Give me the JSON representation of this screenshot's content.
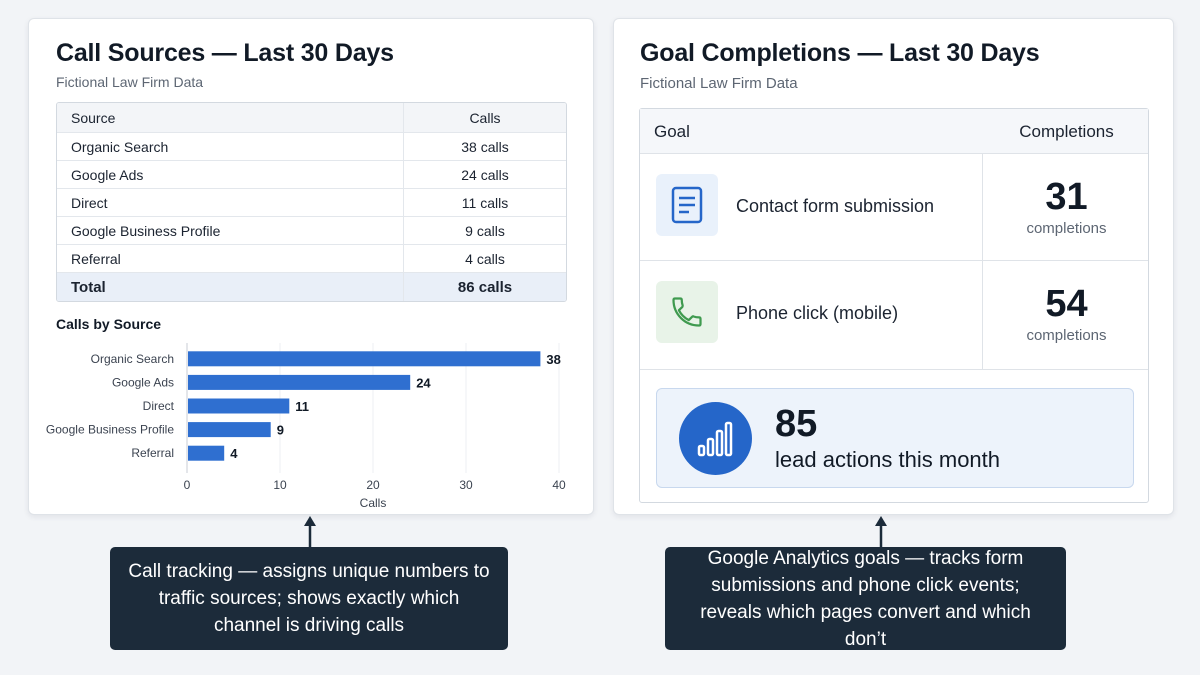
{
  "left_panel": {
    "title": "Call Sources — Last 30 Days",
    "subtitle": "Fictional Law Firm Data",
    "table": {
      "headers": [
        "Source",
        "Calls"
      ],
      "rows": [
        {
          "source": "Organic Search",
          "calls": "38 calls"
        },
        {
          "source": "Google Ads",
          "calls": "24 calls"
        },
        {
          "source": "Direct",
          "calls": "11 calls"
        },
        {
          "source": "Google Business Profile",
          "calls": "9 calls"
        },
        {
          "source": "Referral",
          "calls": "4 calls"
        }
      ],
      "total": {
        "label": "Total",
        "value": "86 calls"
      }
    }
  },
  "chart_data": {
    "type": "bar",
    "orientation": "horizontal",
    "title": "Calls by Source",
    "categories": [
      "Organic Search",
      "Google Ads",
      "Direct",
      "Google Business Profile",
      "Referral"
    ],
    "values": [
      38,
      24,
      11,
      9,
      4
    ],
    "xlabel": "Calls",
    "ylabel": "",
    "xlim": [
      0,
      40
    ],
    "xticks": [
      0,
      10,
      20,
      30,
      40
    ],
    "grid": true,
    "bar_color": "#2f6fd0"
  },
  "right_panel": {
    "title": "Goal Completions — Last 30 Days",
    "subtitle": "Fictional Law Firm Data",
    "table": {
      "headers": {
        "goal": "Goal",
        "completions": "Completions"
      },
      "rows": [
        {
          "icon": "form-document-icon",
          "label": "Contact form submission",
          "value": "31",
          "unit": "completions"
        },
        {
          "icon": "phone-icon",
          "label": "Phone click (mobile)",
          "value": "54",
          "unit": "completions"
        }
      ]
    },
    "summary": {
      "icon": "bar-chart-icon",
      "value": "85",
      "text": "lead actions this month"
    }
  },
  "callouts": {
    "left": "Call tracking — assigns unique numbers to traffic sources; shows exactly which channel is driving calls",
    "right": "Google Analytics goals — tracks form submissions and phone click events; reveals which pages convert and which don’t"
  },
  "colors": {
    "accent": "#2566c9",
    "bar": "#2f6fd0",
    "callout_bg": "#1c2b3a",
    "form_icon_bg": "#e9f1fb",
    "phone_icon_bg": "#e8f3e8",
    "phone_icon": "#3f9a4f"
  }
}
